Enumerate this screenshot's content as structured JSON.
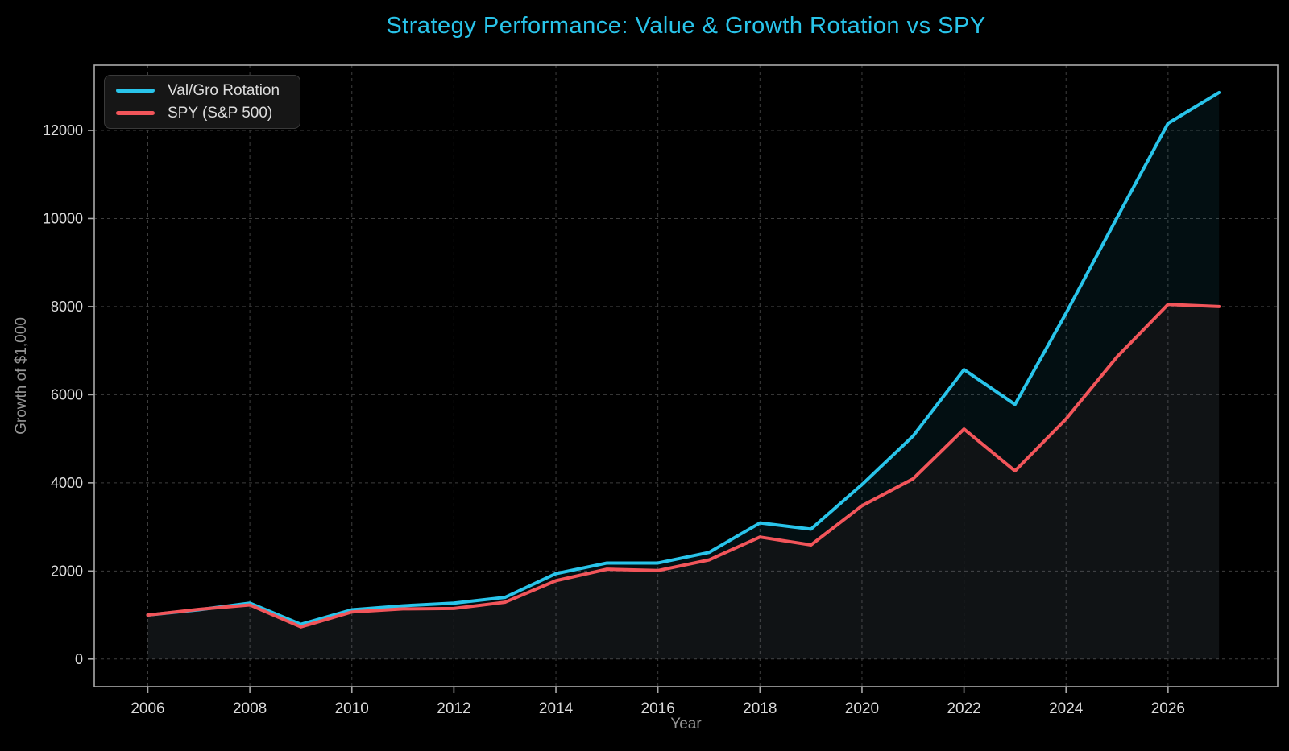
{
  "theme": {
    "background": "#000000",
    "accent": "#29c4ea",
    "text_bright": "#dcdcdc",
    "text_muted": "#969696",
    "grid_color": "#3e3e3e",
    "spine_color": "#aaaaaa",
    "legend_bg": "#161616",
    "legend_border": "#3a3a3a"
  },
  "chart_data": {
    "type": "line",
    "title": "Strategy Performance: Value & Growth Rotation vs SPY",
    "xlabel": "Year",
    "ylabel": "Growth of $1,000",
    "grid": true,
    "legend_position": "upper left",
    "x": [
      2006,
      2007,
      2008,
      2009,
      2010,
      2011,
      2012,
      2013,
      2014,
      2015,
      2016,
      2017,
      2018,
      2019,
      2020,
      2021,
      2022,
      2023,
      2024,
      2025,
      2026,
      2027
    ],
    "series": [
      {
        "name": "Val/Gro Rotation",
        "color": "#29c4ea",
        "fill_opacity": 0.08,
        "values": [
          1000,
          1120,
          1270,
          790,
          1120,
          1210,
          1270,
          1400,
          1940,
          2180,
          2180,
          2420,
          3090,
          2950,
          3960,
          5060,
          6570,
          5780,
          7850,
          10020,
          12160,
          12860
        ]
      },
      {
        "name": "SPY (S&P 500)",
        "color": "#f2555a",
        "fill_opacity": 0.06,
        "values": [
          1000,
          1130,
          1230,
          730,
          1070,
          1140,
          1150,
          1290,
          1780,
          2040,
          2010,
          2250,
          2770,
          2590,
          3480,
          4090,
          5220,
          4270,
          5450,
          6860,
          8050,
          8000
        ]
      }
    ],
    "xticks": [
      2006,
      2008,
      2010,
      2012,
      2014,
      2016,
      2018,
      2020,
      2022,
      2024,
      2026
    ],
    "yticks": [
      0,
      2000,
      4000,
      6000,
      8000,
      10000,
      12000
    ],
    "xlim": [
      2004.95,
      2028.15
    ],
    "ylim": [
      -625,
      13480
    ]
  }
}
